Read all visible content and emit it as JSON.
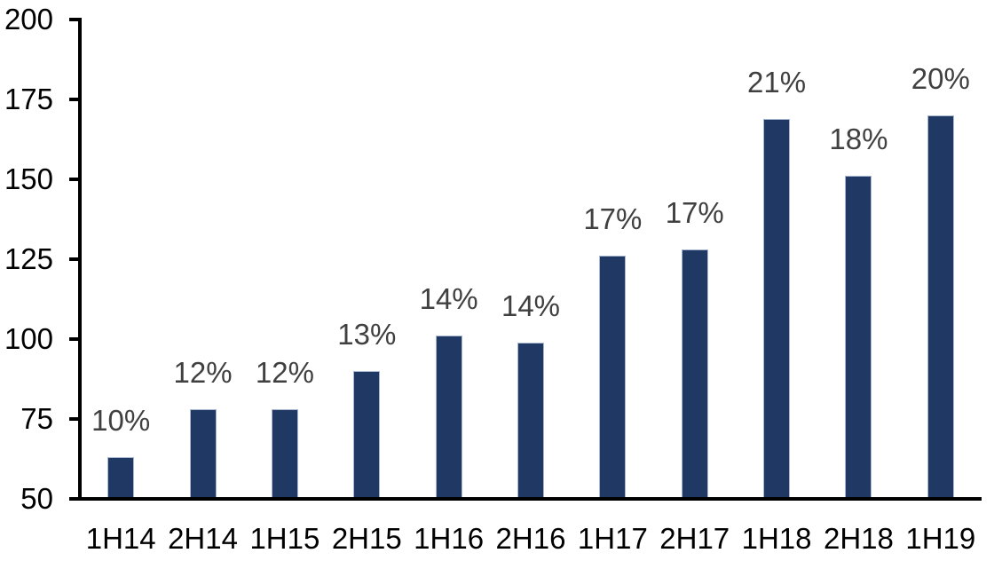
{
  "chart_data": {
    "type": "bar",
    "title": "",
    "xlabel": "",
    "ylabel": "",
    "categories": [
      "1H14",
      "2H14",
      "1H15",
      "2H15",
      "1H16",
      "2H16",
      "1H17",
      "2H17",
      "1H18",
      "2H18",
      "1H19"
    ],
    "values": [
      63,
      78,
      78,
      90,
      101,
      99,
      126,
      128,
      169,
      151,
      170
    ],
    "data_labels": [
      "10%",
      "12%",
      "12%",
      "13%",
      "14%",
      "14%",
      "17%",
      "17%",
      "21%",
      "18%",
      "20%"
    ],
    "ylim": [
      50,
      200
    ],
    "yticks": [
      200,
      175,
      150,
      125,
      100,
      75,
      50
    ],
    "grid": false,
    "legend": false,
    "colors": {
      "bar_fill": "#1F3864",
      "bar_border": "#A9B8D0",
      "data_label": "#404040",
      "axis_text": "#000000",
      "axis_line": "#000000",
      "background": "#FFFFFF"
    }
  }
}
